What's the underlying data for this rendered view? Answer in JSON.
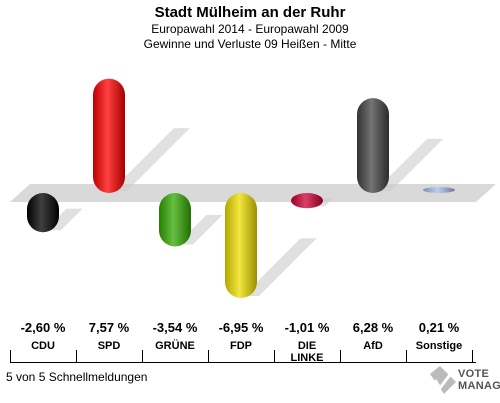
{
  "header": {
    "title": "Stadt Mülheim an der Ruhr",
    "subtitle1": "Europawahl 2014 - Europawahl 2009",
    "subtitle2": "Gewinne und Verluste 09 Heißen - Mitte"
  },
  "chart_data": {
    "type": "bar",
    "categories": [
      "CDU",
      "SPD",
      "GRÜNE",
      "FDP",
      "DIE LINKE",
      "AfD",
      "Sonstige"
    ],
    "values": [
      -2.6,
      7.57,
      -3.54,
      -6.95,
      -1.01,
      6.28,
      0.21
    ],
    "value_labels": [
      "-2,60 %",
      "7,57 %",
      "-3,54 %",
      "-6,95 %",
      "-1,01 %",
      "6,28 %",
      "0,21 %"
    ],
    "colors": [
      "#000000",
      "#ff0000",
      "#33aa00",
      "#eedd00",
      "#cc0033",
      "#444444",
      "#aabbee"
    ],
    "baseline": "zero line shown as grey band"
  },
  "footer": {
    "reporting": "5 von 5 Schnellmeldungen",
    "logo_line1": "VOTE",
    "logo_line2": "MANAGER"
  }
}
